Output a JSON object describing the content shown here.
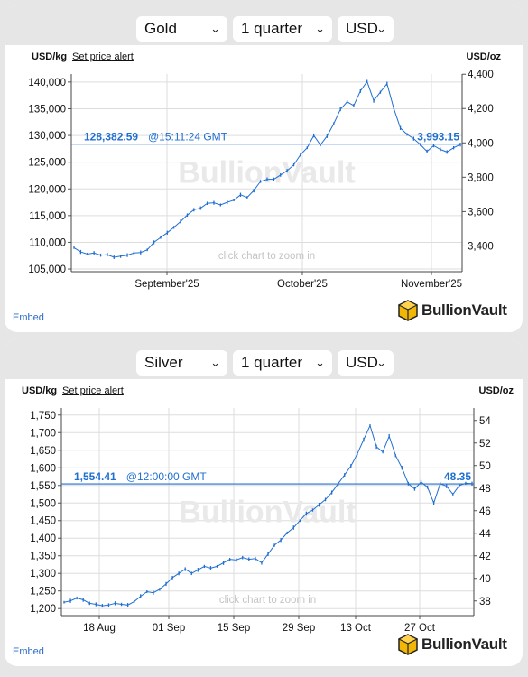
{
  "panels": [
    {
      "metal_select": "Gold",
      "period_select": "1 quarter",
      "currency_select": "USD",
      "unit_left": "USD/kg",
      "alert_link": "Set price alert",
      "unit_right": "USD/oz",
      "embed_link": "Embed",
      "logo_text": "BullionVault",
      "watermark": "BullionVault",
      "hint": "click chart to zoom in"
    },
    {
      "metal_select": "Silver",
      "period_select": "1 quarter",
      "currency_select": "USD",
      "unit_left": "USD/kg",
      "alert_link": "Set price alert",
      "unit_right": "USD/oz",
      "embed_link": "Embed",
      "logo_text": "BullionVault",
      "watermark": "BullionVault",
      "hint": "click chart to zoom in"
    }
  ],
  "colors": {
    "line": "#1f6fd1",
    "grid": "#dddddd",
    "panel_bg": "#e6e6e6"
  },
  "icons": [
    "chevron-down-icon",
    "bullionvault-cube-icon"
  ],
  "chart_data": [
    {
      "type": "line",
      "title": "Gold",
      "ylabel": "USD/kg",
      "y2label": "USD/oz",
      "ylim": [
        104500,
        141500
      ],
      "y2lim": [
        3250,
        4401
      ],
      "yticks": [
        "105,000",
        "110,000",
        "115,000",
        "120,000",
        "125,000",
        "130,000",
        "135,000",
        "140,000"
      ],
      "y2ticks": [
        "3,400",
        "3,600",
        "3,800",
        "4,000",
        "4,200",
        "4,400"
      ],
      "xticks": [
        "September'25",
        "October'25",
        "November'25"
      ],
      "current_value": "128,382.59",
      "current_time": "@15:11:24 GMT",
      "current_right": "3,993.15",
      "current_level": 128382.59,
      "grid": true,
      "series": [
        {
          "values": [
            109000,
            108200,
            107800,
            108000,
            107600,
            107700,
            107200,
            107400,
            107600,
            108000,
            108100,
            108600,
            110000,
            110900,
            111800,
            112800,
            113900,
            115100,
            116100,
            116400,
            117300,
            117400,
            117000,
            117500,
            117900,
            118900,
            118400,
            119700,
            121400,
            121800,
            121800,
            122600,
            123400,
            124500,
            126400,
            127700,
            130000,
            128200,
            129900,
            132200,
            134900,
            136300,
            135600,
            138300,
            140100,
            136500,
            138100,
            139700,
            135100,
            131400,
            130200,
            129400,
            128300,
            127000,
            128100,
            127400,
            126900,
            127700,
            128300
          ]
        }
      ]
    },
    {
      "type": "line",
      "title": "Silver",
      "ylabel": "USD/kg",
      "y2label": "USD/oz",
      "ylim": [
        1180,
        1770
      ],
      "y2lim": [
        36.7,
        55.1
      ],
      "yticks": [
        "1,200",
        "1,250",
        "1,300",
        "1,350",
        "1,400",
        "1,450",
        "1,500",
        "1,550",
        "1,600",
        "1,650",
        "1,700",
        "1,750"
      ],
      "y2ticks": [
        "38",
        "40",
        "42",
        "44",
        "46",
        "48",
        "50",
        "52",
        "54"
      ],
      "xticks": [
        "18 Aug",
        "01 Sep",
        "15 Sep",
        "29 Sep",
        "13 Oct",
        "27 Oct"
      ],
      "current_value": "1,554.41",
      "current_time": "@12:00:00 GMT",
      "current_right": "48.35",
      "current_level": 1554.41,
      "grid": true,
      "series": [
        {
          "values": [
            1218,
            1222,
            1230,
            1225,
            1215,
            1212,
            1208,
            1210,
            1215,
            1212,
            1210,
            1220,
            1235,
            1248,
            1245,
            1255,
            1270,
            1288,
            1300,
            1312,
            1300,
            1310,
            1320,
            1315,
            1320,
            1330,
            1340,
            1338,
            1345,
            1340,
            1342,
            1330,
            1355,
            1380,
            1395,
            1415,
            1430,
            1450,
            1470,
            1480,
            1495,
            1510,
            1530,
            1555,
            1580,
            1605,
            1640,
            1680,
            1720,
            1660,
            1645,
            1690,
            1635,
            1600,
            1555,
            1540,
            1560,
            1545,
            1500,
            1555,
            1548,
            1525,
            1550,
            1556,
            1555
          ]
        }
      ]
    }
  ]
}
